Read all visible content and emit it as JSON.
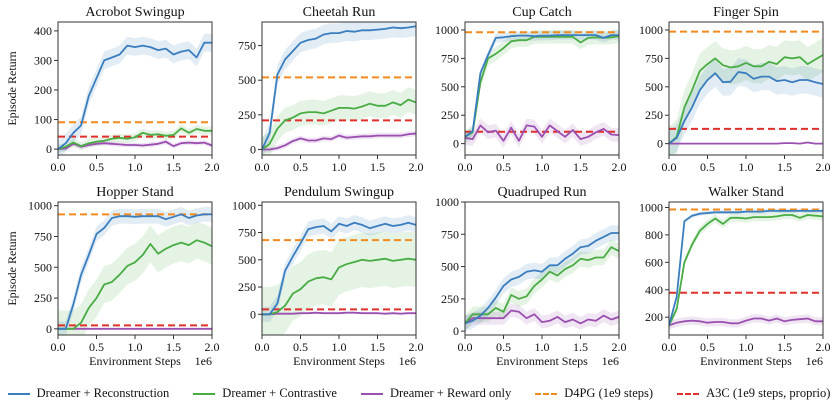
{
  "chart_data": {
    "type": "line",
    "x": [
      0.0,
      0.1,
      0.2,
      0.3,
      0.4,
      0.5,
      0.6,
      0.7,
      0.8,
      0.9,
      1.0,
      1.1,
      1.2,
      1.3,
      1.4,
      1.5,
      1.6,
      1.7,
      1.8,
      1.9,
      2.0
    ],
    "x_scale_label": "1e6",
    "xlabel": "Environment Steps",
    "ylabel": "Episode Return",
    "xlim": [
      0,
      2.0
    ],
    "xticks": [
      "0.0",
      "0.5",
      "1.0",
      "1.5",
      "2.0"
    ],
    "legend": {
      "placement": "bottom-center",
      "entries": [
        {
          "key": "recon",
          "label": "Dreamer + Reconstruction",
          "color": "#3a7ebf",
          "style": "solid"
        },
        {
          "key": "contrast",
          "label": "Dreamer + Contrastive",
          "color": "#4aac45",
          "style": "solid"
        },
        {
          "key": "reward",
          "label": "Dreamer + Reward only",
          "color": "#9b4fb0",
          "style": "solid"
        },
        {
          "key": "d4pg",
          "label": "D4PG (1e9 steps)",
          "color": "#f28a1e",
          "style": "dashed"
        },
        {
          "key": "a3c",
          "label": "A3C (1e9 steps, proprio)",
          "color": "#e0302b",
          "style": "dashed"
        }
      ]
    },
    "panels": [
      {
        "title": "Acrobot Swingup",
        "ylim": [
          -20,
          430
        ],
        "yticks": [
          0,
          100,
          200,
          300,
          400
        ],
        "show_ylabel": true,
        "show_xlabel": false,
        "d4pg": 91,
        "a3c": 42,
        "series": {
          "recon": {
            "mean": [
              0,
              20,
              55,
              80,
              180,
              240,
              300,
              310,
              320,
              350,
              345,
              350,
              345,
              335,
              340,
              320,
              330,
              335,
              310,
              360,
              360
            ],
            "band": 30
          },
          "contrast": {
            "mean": [
              0,
              8,
              22,
              10,
              20,
              25,
              28,
              35,
              38,
              35,
              40,
              55,
              48,
              50,
              45,
              48,
              70,
              55,
              68,
              62,
              62
            ],
            "band": 14
          },
          "reward": {
            "mean": [
              0,
              2,
              18,
              8,
              14,
              18,
              20,
              18,
              16,
              14,
              14,
              12,
              15,
              18,
              25,
              10,
              20,
              22,
              20,
              22,
              12
            ],
            "band": 8
          }
        }
      },
      {
        "title": "Cheetah Run",
        "ylim": [
          -40,
          920
        ],
        "yticks": [
          0,
          250,
          500,
          750
        ],
        "show_ylabel": false,
        "show_xlabel": false,
        "d4pg": 520,
        "a3c": 210,
        "series": {
          "recon": {
            "mean": [
              0,
              120,
              540,
              650,
              710,
              770,
              790,
              800,
              830,
              840,
              840,
              855,
              850,
              860,
              860,
              865,
              870,
              880,
              875,
              880,
              890
            ],
            "band": 70
          },
          "contrast": {
            "mean": [
              0,
              40,
              150,
              210,
              230,
              260,
              270,
              270,
              260,
              280,
              300,
              300,
              295,
              310,
              330,
              315,
              315,
              340,
              320,
              360,
              340
            ],
            "band": 90
          },
          "reward": {
            "mean": [
              0,
              0,
              10,
              30,
              60,
              80,
              65,
              65,
              80,
              75,
              100,
              85,
              90,
              95,
              95,
              100,
              100,
              100,
              100,
              110,
              115
            ],
            "band": 20
          }
        }
      },
      {
        "title": "Cup Catch",
        "ylim": [
          -100,
          1070
        ],
        "yticks": [
          0,
          250,
          500,
          750,
          1000
        ],
        "show_ylabel": false,
        "show_xlabel": false,
        "d4pg": 980,
        "a3c": 105,
        "series": {
          "recon": {
            "mean": [
              60,
              110,
              620,
              780,
              930,
              935,
              945,
              950,
              950,
              945,
              950,
              950,
              955,
              955,
              955,
              955,
              955,
              955,
              930,
              955,
              955
            ],
            "band": 40
          },
          "contrast": {
            "mean": [
              60,
              100,
              540,
              750,
              790,
              840,
              900,
              910,
              910,
              940,
              940,
              940,
              940,
              940,
              940,
              890,
              930,
              935,
              930,
              935,
              945
            ],
            "band": 60
          },
          "reward": {
            "mean": [
              50,
              40,
              160,
              100,
              115,
              25,
              140,
              25,
              160,
              150,
              60,
              160,
              110,
              60,
              120,
              40,
              60,
              100,
              130,
              80,
              75
            ],
            "band": 60
          }
        }
      },
      {
        "title": "Finger Spin",
        "ylim": [
          -100,
          1070
        ],
        "yticks": [
          0,
          250,
          500,
          750,
          1000
        ],
        "show_ylabel": false,
        "show_xlabel": false,
        "d4pg": 985,
        "a3c": 130,
        "series": {
          "recon": {
            "mean": [
              0,
              50,
              200,
              320,
              470,
              560,
              620,
              540,
              545,
              630,
              620,
              570,
              590,
              590,
              550,
              560,
              540,
              560,
              560,
              540,
              525
            ],
            "band": 120
          },
          "contrast": {
            "mean": [
              0,
              60,
              320,
              470,
              640,
              700,
              750,
              690,
              670,
              680,
              710,
              680,
              680,
              720,
              700,
              760,
              750,
              760,
              700,
              740,
              780
            ],
            "band": 150
          },
          "reward": {
            "mean": [
              0,
              0,
              0,
              0,
              0,
              0,
              0,
              0,
              0,
              0,
              0,
              0,
              0,
              0,
              0,
              5,
              5,
              0,
              10,
              0,
              0
            ],
            "band": 6
          }
        }
      },
      {
        "title": "Hopper Stand",
        "ylim": [
          -50,
          1030
        ],
        "yticks": [
          0,
          250,
          500,
          750,
          1000
        ],
        "show_ylabel": true,
        "show_xlabel": true,
        "d4pg": 930,
        "a3c": 28,
        "series": {
          "recon": {
            "mean": [
              0,
              0,
              200,
              440,
              600,
              770,
              820,
              900,
              915,
              915,
              910,
              915,
              915,
              915,
              890,
              910,
              930,
              900,
              920,
              930,
              930
            ],
            "band": 60
          },
          "contrast": {
            "mean": [
              0,
              0,
              0,
              50,
              170,
              250,
              360,
              380,
              440,
              510,
              540,
              600,
              690,
              610,
              650,
              680,
              700,
              680,
              720,
              700,
              670
            ],
            "band": 150
          },
          "reward": {
            "mean": [
              0,
              0,
              0,
              0,
              0,
              0,
              0,
              0,
              0,
              0,
              0,
              0,
              0,
              0,
              0,
              0,
              0,
              0,
              0,
              0,
              0
            ],
            "band": 4
          }
        }
      },
      {
        "title": "Pendulum Swingup",
        "ylim": [
          -190,
          1030
        ],
        "yticks": [
          0,
          250,
          500,
          750,
          1000
        ],
        "show_ylabel": false,
        "show_xlabel": true,
        "d4pg": 680,
        "a3c": 45,
        "series": {
          "recon": {
            "mean": [
              0,
              0,
              100,
              400,
              530,
              650,
              780,
              800,
              810,
              760,
              830,
              810,
              840,
              820,
              790,
              810,
              830,
              810,
              820,
              840,
              820
            ],
            "band": 70
          },
          "contrast": {
            "mean": [
              0,
              0,
              20,
              80,
              190,
              230,
              300,
              330,
              340,
              320,
              430,
              460,
              480,
              500,
              490,
              500,
              510,
              490,
              500,
              510,
              500
            ],
            "band": 250
          },
          "reward": {
            "mean": [
              0,
              0,
              5,
              5,
              5,
              10,
              10,
              15,
              10,
              10,
              10,
              15,
              15,
              10,
              10,
              10,
              5,
              10,
              5,
              10,
              10
            ],
            "band": 6
          }
        }
      },
      {
        "title": "Quadruped Run",
        "ylim": [
          -30,
          1000
        ],
        "yticks": [
          0,
          250,
          500,
          750,
          1000
        ],
        "show_ylabel": false,
        "show_xlabel": true,
        "d4pg": null,
        "a3c": null,
        "series": {
          "recon": {
            "mean": [
              60,
              80,
              120,
              180,
              260,
              350,
              400,
              420,
              460,
              470,
              460,
              510,
              510,
              560,
              600,
              650,
              660,
              700,
              730,
              760,
              760
            ],
            "band": 60
          },
          "contrast": {
            "mean": [
              60,
              130,
              130,
              130,
              180,
              150,
              280,
              250,
              270,
              350,
              400,
              460,
              430,
              480,
              510,
              560,
              550,
              570,
              570,
              650,
              620
            ],
            "band": 60
          },
          "reward": {
            "mean": [
              60,
              100,
              100,
              100,
              100,
              100,
              160,
              150,
              100,
              130,
              70,
              80,
              110,
              70,
              90,
              60,
              90,
              80,
              120,
              90,
              110
            ],
            "band": 50
          }
        }
      },
      {
        "title": "Walker Stand",
        "ylim": [
          70,
          1040
        ],
        "yticks": [
          200,
          400,
          600,
          800,
          1000
        ],
        "show_ylabel": false,
        "show_xlabel": true,
        "d4pg": 985,
        "a3c": 378,
        "series": {
          "recon": {
            "mean": [
              140,
              350,
              900,
              940,
              955,
              960,
              965,
              965,
              965,
              965,
              970,
              970,
              970,
              975,
              975,
              975,
              975,
              975,
              975,
              975,
              975
            ],
            "band": 15
          },
          "contrast": {
            "mean": [
              140,
              260,
              600,
              730,
              830,
              880,
              920,
              880,
              925,
              925,
              920,
              930,
              930,
              930,
              935,
              945,
              945,
              925,
              945,
              940,
              935
            ],
            "band": 30
          },
          "reward": {
            "mean": [
              140,
              160,
              170,
              175,
              170,
              160,
              165,
              165,
              155,
              155,
              175,
              190,
              190,
              175,
              190,
              170,
              180,
              185,
              190,
              170,
              170
            ],
            "band": 30
          }
        }
      }
    ]
  }
}
